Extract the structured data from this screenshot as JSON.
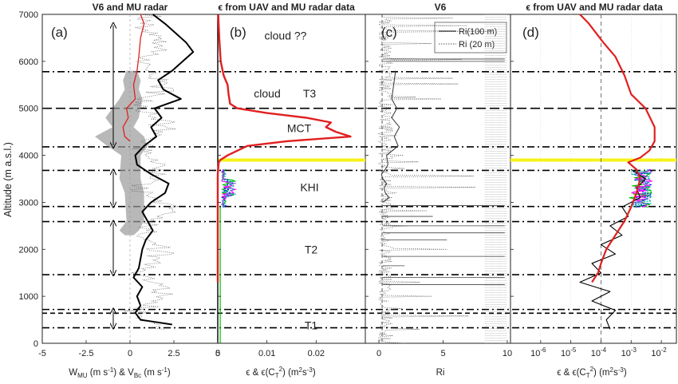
{
  "figure": {
    "y_axis_label": "Altitude (m a.s.l.)",
    "y_ticks": [
      "0",
      "1000",
      "2000",
      "3000",
      "4000",
      "5000",
      "6000",
      "7000"
    ]
  },
  "panels": [
    {
      "id": "a",
      "label": "(a)",
      "title": "V6 and MU radar",
      "x_ticks": [
        "-5",
        "-2.5",
        "0",
        "2.5",
        "5"
      ],
      "x_label": "W_MU (m s-1) & V_Bc (m s-1)",
      "x_label_parts": {
        "w": "W",
        "wsub": "MU",
        "mid": " (m s",
        "exp1": "-1",
        "amp": ") & V",
        "vsub": "Bc",
        "end": " (m s",
        "exp2": "-1",
        "close": ")"
      },
      "annotations": []
    },
    {
      "id": "b",
      "label": "(b)",
      "title": "ϵ from UAV and MU radar data",
      "x_ticks": [
        "0",
        "0.01",
        "0.02"
      ],
      "x_label": "ϵ & ϵ(C_T^2) (m^2 s^-3)",
      "annotations": [
        {
          "text": "cloud ??",
          "alt": 6550
        },
        {
          "text": "cloud",
          "alt": 5320
        },
        {
          "text": "T3",
          "alt": 5320
        },
        {
          "text": "MCT",
          "alt": 4580
        },
        {
          "text": "KHI",
          "alt": 3320
        },
        {
          "text": "T2",
          "alt": 2000
        },
        {
          "text": "T1",
          "alt": 380
        }
      ]
    },
    {
      "id": "c",
      "label": "(c)",
      "title": "V6",
      "x_ticks": [
        "0",
        "5",
        "10"
      ],
      "x_label": "Ri",
      "legend": [
        "Ri(100 m)",
        "Ri (20 m)"
      ],
      "annotations": []
    },
    {
      "id": "d",
      "label": "(d)",
      "title": "ϵ from UAV and MU radar data",
      "x_ticks_mant": [
        "10",
        "10",
        "10",
        "10",
        "10"
      ],
      "x_ticks_exp": [
        "-6",
        "-5",
        "-4",
        "-3",
        "-2"
      ],
      "x_label": "ϵ & ϵ(C_T^2) (m^2 s^-3)",
      "annotations": []
    }
  ],
  "chart_data": {
    "type": "line",
    "y_range": [
      0,
      7000
    ],
    "reference_lines": {
      "dash_dot": [
        330,
        720,
        1460,
        2590,
        2910,
        3680,
        4180,
        5780
      ],
      "dashed": [
        5000
      ],
      "dashed_short": [
        640
      ],
      "highlight_yellow": 3900
    },
    "panel_a": {
      "xlim": [
        -5,
        5
      ],
      "series": [
        {
          "name": "W_MU",
          "color": "#e02020",
          "y": [
            4300,
            4400,
            4600,
            4800,
            5000,
            5200,
            5500,
            5800,
            6100,
            6500,
            6800,
            7000
          ],
          "x": [
            0.0,
            -0.3,
            -0.4,
            -0.1,
            -0.2,
            0.3,
            0.2,
            0.4,
            0.5,
            0.6,
            0.8,
            0.6
          ]
        },
        {
          "name": "V_Bc",
          "color": "#000000",
          "y": [
            400,
            500,
            650,
            800,
            1000,
            1200,
            1400,
            1600,
            1800,
            2000,
            2200,
            2400,
            2600,
            2800,
            3000,
            3200,
            3400,
            3600,
            3800,
            4000,
            4200,
            4400,
            4600,
            4800,
            5000,
            5200,
            5400,
            5600,
            5800,
            6000,
            6200,
            6400,
            6600,
            6800,
            7000
          ],
          "x": [
            2.4,
            0.6,
            0.3,
            0.6,
            0.4,
            0.7,
            0.2,
            0.5,
            0.6,
            0.7,
            0.9,
            1.3,
            1.0,
            0.7,
            1.2,
            2.0,
            2.2,
            1.2,
            0.4,
            0.3,
            0.8,
            1.5,
            1.2,
            1.8,
            1.4,
            2.9,
            1.9,
            1.6,
            2.4,
            3.0,
            3.6,
            3.2,
            2.6,
            2.0,
            1.3
          ]
        }
      ]
    },
    "panel_b": {
      "xlim": [
        0,
        0.03
      ],
      "series": [
        {
          "name": "epsilon (red)",
          "color": "#e02020",
          "y": [
            1300,
            2000,
            2800,
            3600,
            3850,
            3900,
            4000,
            4100,
            4200,
            4300,
            4400,
            4500,
            4600,
            4700,
            4800,
            4900,
            5000,
            5100,
            5300,
            5500,
            5700,
            6000,
            6500,
            7000
          ],
          "x": [
            0.0,
            0.0,
            0.0,
            0.0,
            0.0002,
            0.0005,
            0.002,
            0.004,
            0.006,
            0.014,
            0.027,
            0.024,
            0.022,
            0.023,
            0.018,
            0.01,
            0.004,
            0.0025,
            0.0022,
            0.002,
            0.0012,
            0.0006,
            0.0003,
            0.0001
          ]
        }
      ]
    },
    "panel_c": {
      "xlim": [
        -1.5,
        10
      ],
      "series": [
        {
          "name": "Ri(100 m)",
          "color": "#333333",
          "y": [
            3000,
            3100,
            3200,
            3300,
            3400,
            3500,
            3600,
            3700,
            3800,
            4000,
            4200,
            4400,
            4600,
            4800,
            5000,
            5200,
            5600,
            5800
          ],
          "x": [
            0.3,
            0.8,
            0.5,
            0.4,
            0.6,
            0.3,
            0.2,
            0.5,
            0.7,
            0.6,
            1.5,
            1.2,
            1.6,
            1.0,
            1.4,
            1.0,
            1.2,
            1.3
          ]
        }
      ]
    },
    "panel_d": {
      "xscale": "log",
      "xlim": [
        1e-07,
        0.05
      ],
      "series": [
        {
          "name": "epsilon (red)",
          "color": "#e02020",
          "y": [
            1300,
            1500,
            1700,
            2000,
            2300,
            2600,
            2900,
            3200,
            3500,
            3700,
            3850,
            3950,
            4100,
            4300,
            4600,
            5000,
            5300,
            5700,
            6100,
            6400,
            6800,
            7000
          ],
          "x": [
            5e-05,
            8e-05,
            0.0001,
            0.00015,
            0.0003,
            0.0006,
            0.001,
            0.0015,
            0.002,
            0.0015,
            0.0008,
            0.002,
            0.004,
            0.006,
            0.006,
            0.003,
            0.001,
            0.0006,
            0.0003,
            0.00012,
            4e-05,
            2e-05
          ]
        },
        {
          "name": "epsilon (black)",
          "color": "#000000",
          "y": [
            300,
            500,
            700,
            900,
            1100,
            1300,
            1500,
            1700,
            1900,
            2100,
            2300,
            2500,
            2700,
            2900,
            3100,
            3300,
            3500,
            3700
          ],
          "x": [
            0.0002,
            0.00015,
            0.0003,
            5e-05,
            0.0002,
            2e-05,
            0.0001,
            5e-05,
            0.0003,
            0.0001,
            0.0005,
            0.0002,
            0.0008,
            0.0005,
            0.002,
            0.0015,
            0.003,
            0.001
          ]
        }
      ]
    }
  }
}
